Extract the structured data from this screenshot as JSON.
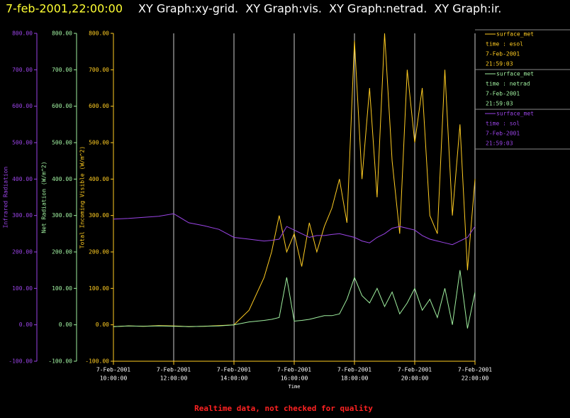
{
  "chart_data": {
    "type": "line",
    "title": "7-feb-2001,22:00:00",
    "subtitle": "XY Graph:xy-grid.  XY Graph:vis.  XY Graph:netrad.  XY Graph:ir.",
    "footer": "Realtime data, not checked for quality",
    "xlabel": "Time",
    "xlim": [
      10,
      22
    ],
    "xticks": [
      {
        "value": 10,
        "label": [
          "7-Feb-2001",
          "10:00:00"
        ]
      },
      {
        "value": 12,
        "label": [
          "7-Feb-2001",
          "12:00:00"
        ]
      },
      {
        "value": 14,
        "label": [
          "7-Feb-2001",
          "14:00:00"
        ]
      },
      {
        "value": 16,
        "label": [
          "7-Feb-2001",
          "16:00:00"
        ]
      },
      {
        "value": 18,
        "label": [
          "7-Feb-2001",
          "18:00:00"
        ]
      },
      {
        "value": 20,
        "label": [
          "7-Feb-2001",
          "20:00:00"
        ]
      },
      {
        "value": 22,
        "label": [
          "7-Feb-2001",
          "22:00:00"
        ]
      }
    ],
    "grid": true,
    "axes": [
      {
        "label": "Infrared Radiation",
        "color": "#9a44e6",
        "ylim": [
          -100,
          800
        ],
        "yticks": [
          {
            "value": 800,
            "label": "800.00"
          },
          {
            "value": 700,
            "label": "700.00"
          },
          {
            "value": 600,
            "label": "600.00"
          },
          {
            "value": 500,
            "label": "500.00"
          },
          {
            "value": 400,
            "label": "400.00"
          },
          {
            "value": 300,
            "label": "300.00"
          },
          {
            "value": 200,
            "label": "200.00"
          },
          {
            "value": 100,
            "label": "100.00"
          },
          {
            "value": 0,
            "label": "0.00"
          },
          {
            "value": -100,
            "label": "-100.00"
          }
        ]
      },
      {
        "label": "Net Radiation (W/m^2)",
        "color": "#a0f0a0",
        "ylim": [
          -100,
          800
        ],
        "yticks": [
          {
            "value": 800,
            "label": "800.00"
          },
          {
            "value": 700,
            "label": "700.00"
          },
          {
            "value": 600,
            "label": "600.00"
          },
          {
            "value": 500,
            "label": "500.00"
          },
          {
            "value": 400,
            "label": "400.00"
          },
          {
            "value": 300,
            "label": "300.00"
          },
          {
            "value": 200,
            "label": "200.00"
          },
          {
            "value": 100,
            "label": "100.00"
          },
          {
            "value": 0,
            "label": "0.00"
          },
          {
            "value": -100,
            "label": "-100.00"
          }
        ]
      },
      {
        "label": "Total Incoming Visible (W/m^2)",
        "color": "#ffcc22",
        "ylim": [
          -100,
          800
        ],
        "yticks": [
          {
            "value": 800,
            "label": "800.00"
          },
          {
            "value": 700,
            "label": "700.00"
          },
          {
            "value": 600,
            "label": "600.00"
          },
          {
            "value": 500,
            "label": "500.00"
          },
          {
            "value": 400,
            "label": "400.00"
          },
          {
            "value": 300,
            "label": "300.00"
          },
          {
            "value": 200,
            "label": "200.00"
          },
          {
            "value": 100,
            "label": "100.00"
          },
          {
            "value": 0,
            "label": "0.00"
          },
          {
            "value": -100,
            "label": "-100.00"
          }
        ]
      }
    ],
    "x": [
      10,
      10.5,
      11,
      11.5,
      12,
      12.5,
      13,
      13.5,
      14,
      14.5,
      15,
      15.25,
      15.5,
      15.75,
      16,
      16.25,
      16.5,
      16.75,
      17,
      17.25,
      17.5,
      17.75,
      18,
      18.25,
      18.5,
      18.75,
      19,
      19.25,
      19.5,
      19.75,
      20,
      20.25,
      20.5,
      20.75,
      21,
      21.25,
      21.5,
      21.75,
      22
    ],
    "series": [
      {
        "name": "surface_met",
        "legend_lines": [
          "time : esol",
          "7-Feb-2001",
          "21:59:03"
        ],
        "color": "#ffcc22",
        "axis": 2,
        "values": [
          -5,
          -3,
          -4,
          -2,
          -3,
          -5,
          -4,
          -2,
          0,
          40,
          130,
          200,
          300,
          200,
          250,
          160,
          280,
          200,
          270,
          320,
          400,
          280,
          780,
          400,
          650,
          350,
          800,
          450,
          250,
          700,
          500,
          650,
          300,
          250,
          700,
          300,
          550,
          150,
          400
        ]
      },
      {
        "name": "surface_met",
        "legend_lines": [
          "time : netrad",
          "7-Feb-2001",
          "21:59:03"
        ],
        "color": "#a0f0a0",
        "axis": 1,
        "values": [
          -5,
          -3,
          -4,
          -3,
          -4,
          -5,
          -4,
          -3,
          0,
          8,
          12,
          15,
          20,
          130,
          10,
          12,
          15,
          20,
          25,
          25,
          30,
          70,
          130,
          80,
          60,
          100,
          50,
          90,
          30,
          60,
          100,
          40,
          70,
          20,
          100,
          0,
          150,
          -10,
          90
        ]
      },
      {
        "name": "surface_met",
        "legend_lines": [
          "time : sol",
          "7-Feb-2001",
          "21:59:03"
        ],
        "color": "#9a44e6",
        "axis": 0,
        "values": [
          290,
          292,
          295,
          298,
          305,
          280,
          272,
          262,
          240,
          235,
          230,
          232,
          235,
          270,
          260,
          250,
          240,
          245,
          245,
          248,
          250,
          245,
          240,
          230,
          225,
          240,
          250,
          265,
          270,
          265,
          260,
          245,
          235,
          230,
          225,
          220,
          230,
          240,
          270
        ]
      }
    ]
  }
}
